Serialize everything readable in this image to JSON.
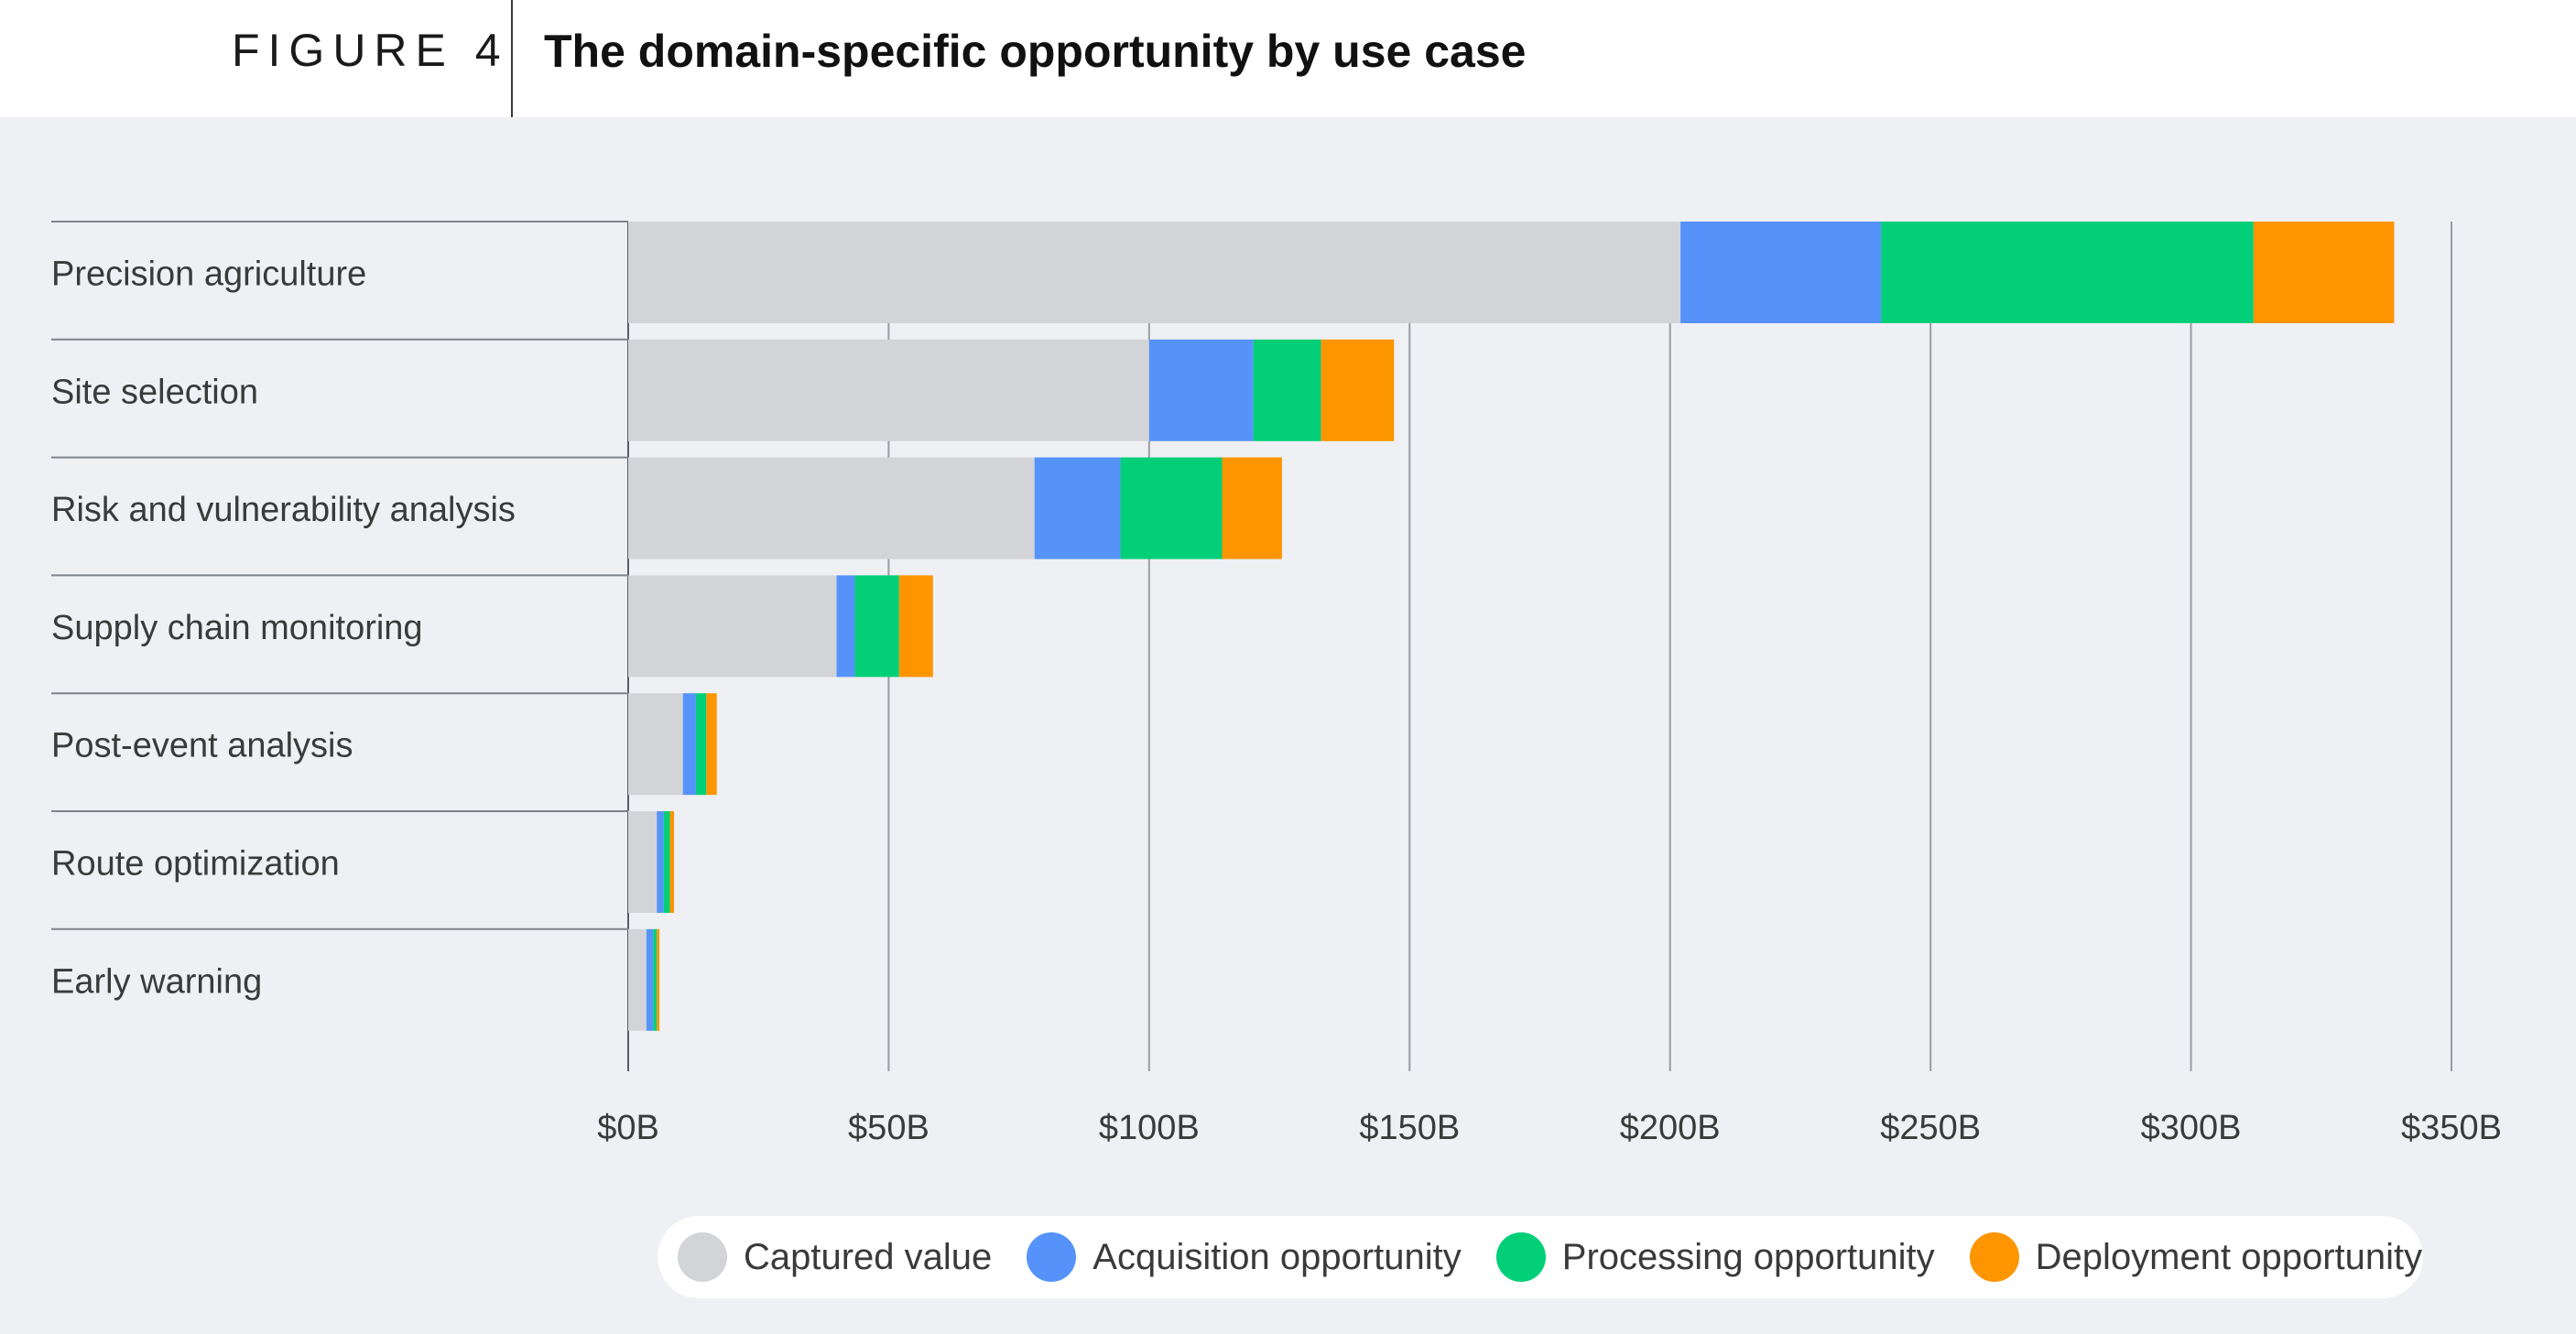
{
  "header": {
    "figure_label": "FIGURE 4",
    "title": "The domain-specific opportunity by use case"
  },
  "colors": {
    "captured": "#d3d4d8",
    "acquisition": "#5593fb",
    "processing": "#03cf79",
    "deployment": "#fd9501",
    "gridline": "#9a9da3",
    "label_text": "#3a3a3a",
    "background": "#eef0f3"
  },
  "chart_data": {
    "type": "bar",
    "orientation": "horizontal",
    "stacked": true,
    "categories": [
      "Precision agriculture",
      "Site selection",
      "Risk and vulnerability analysis",
      "Supply chain monitoring",
      "Post-event analysis",
      "Route optimization",
      "Early warning"
    ],
    "series": [
      {
        "name": "Captured value",
        "color": "#d3d4d8",
        "values": [
          202,
          100,
          78,
          40,
          10.5,
          5.5,
          3.5
        ]
      },
      {
        "name": "Acquisition opportunity",
        "color": "#5593fb",
        "values": [
          38.5,
          20,
          16.5,
          3.5,
          2.5,
          1.3,
          1.3
        ]
      },
      {
        "name": "Processing opportunity",
        "color": "#03cf79",
        "values": [
          71.5,
          13,
          19.5,
          8.5,
          2,
          1.2,
          0.7
        ]
      },
      {
        "name": "Deployment opportunity",
        "color": "#fd9501",
        "values": [
          27,
          14,
          11.5,
          6.5,
          2,
          0.8,
          0.5
        ]
      }
    ],
    "xlim": [
      0,
      350
    ],
    "xticks": [
      0,
      50,
      100,
      150,
      200,
      250,
      300,
      350
    ],
    "xtick_labels": [
      "$0B",
      "$50B",
      "$100B",
      "$150B",
      "$200B",
      "$250B",
      "$300B",
      "$350B"
    ],
    "grid": true,
    "legend": "bottom"
  }
}
